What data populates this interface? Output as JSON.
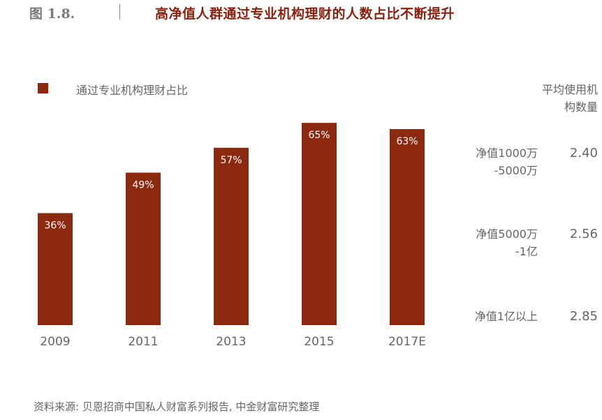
{
  "figure": {
    "number": "图 1.8.",
    "title": "高净值人群通过专业机构理财的人数占比不断提升"
  },
  "legend": {
    "label": "通过专业机构理财占比",
    "color": "#8b2a10"
  },
  "chart_data": {
    "type": "bar",
    "categories": [
      "2009",
      "2011",
      "2013",
      "2015",
      "2017E"
    ],
    "series": [
      {
        "name": "通过专业机构理财占比",
        "values": [
          36,
          49,
          57,
          65,
          63
        ]
      }
    ],
    "data_labels": [
      "36%",
      "49%",
      "57%",
      "65%",
      "63%"
    ],
    "value_unit": "%",
    "ylim": [
      0,
      70
    ],
    "grid": false,
    "legend_position": "top-left",
    "bar_color": "#8b2a10"
  },
  "side_table": {
    "header": "平均使用机构数量",
    "rows": [
      {
        "label": "净值1000万-5000万",
        "value": "2.40"
      },
      {
        "label": "净值5000万-1亿",
        "value": "2.56"
      },
      {
        "label": "净值1亿以上",
        "value": "2.85"
      }
    ]
  },
  "source": "资料来源: 贝恩招商中国私人财富系列报告, 中金财富研究整理"
}
